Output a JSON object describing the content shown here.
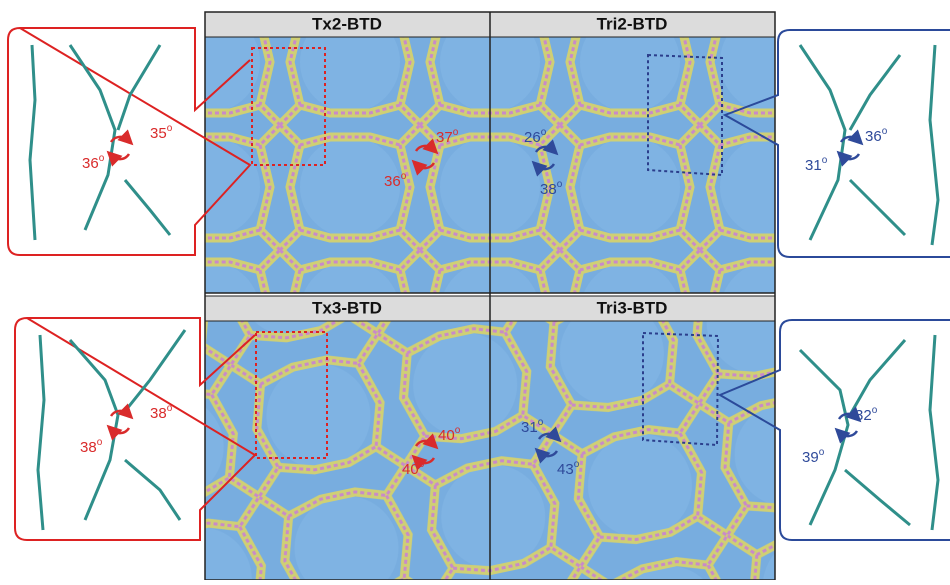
{
  "panels": [
    {
      "title": "Tx2-BTD",
      "angles": [
        "37",
        "36"
      ]
    },
    {
      "title": "Tri2-BTD",
      "angles": [
        "26",
        "38"
      ]
    },
    {
      "title": "Tx3-BTD",
      "angles": [
        "40",
        "40"
      ]
    },
    {
      "title": "Tri3-BTD",
      "angles": [
        "31",
        "43"
      ]
    }
  ],
  "callouts": [
    {
      "angles": [
        "35",
        "36"
      ]
    },
    {
      "angles": [
        "38",
        "38"
      ]
    },
    {
      "angles": [
        "36",
        "31"
      ]
    },
    {
      "angles": [
        "32",
        "39"
      ]
    }
  ],
  "degree_symbol": "o"
}
